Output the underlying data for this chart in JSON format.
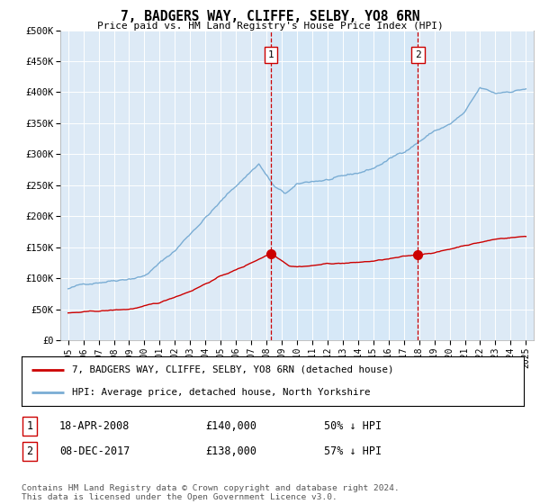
{
  "title": "7, BADGERS WAY, CLIFFE, SELBY, YO8 6RN",
  "subtitle": "Price paid vs. HM Land Registry's House Price Index (HPI)",
  "ylim": [
    0,
    500000
  ],
  "xlim_start": 1994.5,
  "xlim_end": 2025.5,
  "yticks": [
    0,
    50000,
    100000,
    150000,
    200000,
    250000,
    300000,
    350000,
    400000,
    450000,
    500000
  ],
  "ytick_labels": [
    "£0",
    "£50K",
    "£100K",
    "£150K",
    "£200K",
    "£250K",
    "£300K",
    "£350K",
    "£400K",
    "£450K",
    "£500K"
  ],
  "xtick_years": [
    1995,
    1996,
    1997,
    1998,
    1999,
    2000,
    2001,
    2002,
    2003,
    2004,
    2005,
    2006,
    2007,
    2008,
    2009,
    2010,
    2011,
    2012,
    2013,
    2014,
    2015,
    2016,
    2017,
    2018,
    2019,
    2020,
    2021,
    2022,
    2023,
    2024,
    2025
  ],
  "red_line_color": "#cc0000",
  "blue_line_color": "#7aadd4",
  "shade_color": "#d6e8f7",
  "sale1_year": 2008.29,
  "sale1_price": 140000,
  "sale1_label": "1",
  "sale1_date": "18-APR-2008",
  "sale1_amount": "£140,000",
  "sale1_hpi": "50% ↓ HPI",
  "sale2_year": 2017.92,
  "sale2_price": 138000,
  "sale2_label": "2",
  "sale2_date": "08-DEC-2017",
  "sale2_amount": "£138,000",
  "sale2_hpi": "57% ↓ HPI",
  "legend_red_label": "7, BADGERS WAY, CLIFFE, SELBY, YO8 6RN (detached house)",
  "legend_blue_label": "HPI: Average price, detached house, North Yorkshire",
  "footer": "Contains HM Land Registry data © Crown copyright and database right 2024.\nThis data is licensed under the Open Government Licence v3.0.",
  "bg_color": "#ddeaf6",
  "white_color": "#ffffff"
}
